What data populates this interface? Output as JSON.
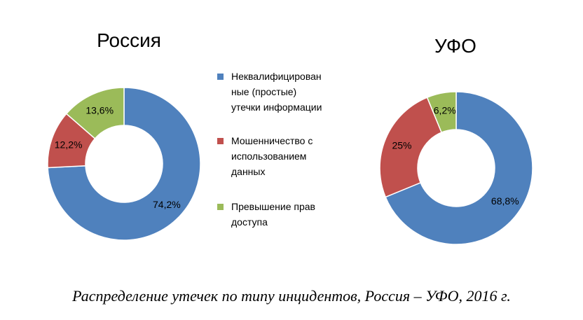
{
  "chart_data": [
    {
      "type": "pie",
      "title": "Россия",
      "categories": [
        "Неквалифицированные (простые) утечки информации",
        "Мошенничество с использованием данных",
        "Превышение прав доступа"
      ],
      "values": [
        74.2,
        12.2,
        13.6
      ],
      "labels": [
        "74,2%",
        "12,2%",
        "13,6%"
      ],
      "colors": [
        "#4f81bd",
        "#c0504d",
        "#9bbb59"
      ]
    },
    {
      "type": "pie",
      "title": "УФО",
      "categories": [
        "Неквалифицированные (простые) утечки информации",
        "Мошенничество с использованием данных",
        "Превышение прав доступа"
      ],
      "values": [
        68.8,
        25,
        6.2
      ],
      "labels": [
        "68,8%",
        "25%",
        "6,2%"
      ],
      "colors": [
        "#4f81bd",
        "#c0504d",
        "#9bbb59"
      ]
    }
  ],
  "legend": {
    "position": "center",
    "items": [
      {
        "lines": [
          "Неквалифицирован",
          "ные (простые)",
          "утечки информации"
        ],
        "color": "#4f81bd"
      },
      {
        "lines": [
          "Мошенничество с",
          "использованием",
          "данных"
        ],
        "color": "#c0504d"
      },
      {
        "lines": [
          "Превышение прав",
          "доступа"
        ],
        "color": "#9bbb59"
      }
    ]
  },
  "caption": "Распределение утечек по типу инцидентов, Россия – УФО, 2016 г."
}
